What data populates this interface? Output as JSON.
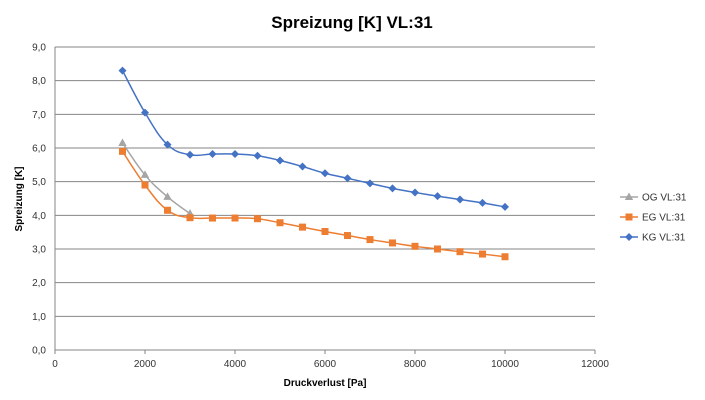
{
  "chart_data": {
    "type": "line",
    "title": "Spreizung  [K] VL:31",
    "xlabel": "Druckverlust [Pa]",
    "ylabel": "Spreizung  [K]",
    "xlim": [
      0,
      12000
    ],
    "ylim": [
      0,
      9
    ],
    "x_ticks": [
      0,
      2000,
      4000,
      6000,
      8000,
      10000,
      12000
    ],
    "x_tick_labels": [
      "0",
      "2000",
      "4000",
      "6000",
      "8000",
      "10000",
      "12000"
    ],
    "y_ticks": [
      0,
      1,
      2,
      3,
      4,
      5,
      6,
      7,
      8,
      9
    ],
    "y_tick_labels": [
      "0,0",
      "1,0",
      "2,0",
      "3,0",
      "4,0",
      "5,0",
      "6,0",
      "7,0",
      "8,0",
      "9,0"
    ],
    "grid": "horizontal",
    "legend_position": "right",
    "series": [
      {
        "name": "OG VL:31",
        "color": "#a5a5a5",
        "marker": "triangle",
        "x": [
          1500,
          2000,
          2500,
          3000
        ],
        "y": [
          6.15,
          5.2,
          4.55,
          4.05
        ]
      },
      {
        "name": "EG VL:31",
        "color": "#ed7d31",
        "marker": "square",
        "x": [
          1500,
          2000,
          2500,
          3000,
          3500,
          4000,
          4500,
          5000,
          5500,
          6000,
          6500,
          7000,
          7500,
          8000,
          8500,
          9000,
          9500,
          10000
        ],
        "y": [
          5.9,
          4.9,
          4.15,
          3.93,
          3.92,
          3.92,
          3.9,
          3.78,
          3.65,
          3.52,
          3.4,
          3.28,
          3.18,
          3.08,
          3.0,
          2.92,
          2.85,
          2.77
        ]
      },
      {
        "name": "KG VL:31",
        "color": "#4472c4",
        "marker": "diamond",
        "x": [
          1500,
          2000,
          2500,
          3000,
          3500,
          4000,
          4500,
          5000,
          5500,
          6000,
          6500,
          7000,
          7500,
          8000,
          8500,
          9000,
          9500,
          10000
        ],
        "y": [
          8.3,
          7.05,
          6.1,
          5.8,
          5.82,
          5.82,
          5.77,
          5.63,
          5.45,
          5.25,
          5.1,
          4.95,
          4.8,
          4.68,
          4.57,
          4.47,
          4.37,
          4.25
        ]
      }
    ]
  }
}
